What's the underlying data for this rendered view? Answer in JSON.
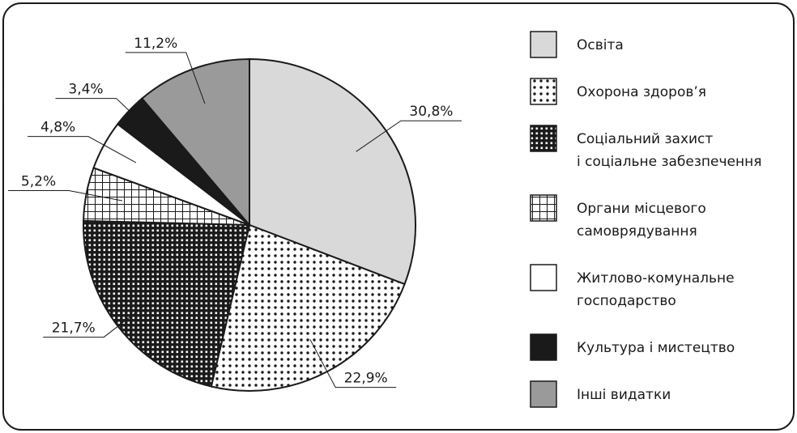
{
  "chart_data": {
    "type": "pie",
    "categories": [
      "Освіта",
      "Охорона здоров’я",
      "Соціальний захист\nі соціальне забезпечення",
      "Органи місцевого\nсамоврядування",
      "Житлово-комунальне\nгосподарство",
      "Культура і мистецтво",
      "Інші видатки"
    ],
    "values": [
      30.8,
      22.9,
      21.7,
      5.2,
      4.8,
      3.4,
      11.2
    ],
    "value_labels": [
      "30,8%",
      "22,9%",
      "21,7%",
      "5,2%",
      "4,8%",
      "3,4%",
      "11,2%"
    ],
    "colors": [
      "#d9d9d9",
      "dots",
      "checker",
      "grid",
      "#ffffff",
      "#1a1a1a",
      "#9a9a9a"
    ],
    "legend": "right"
  }
}
